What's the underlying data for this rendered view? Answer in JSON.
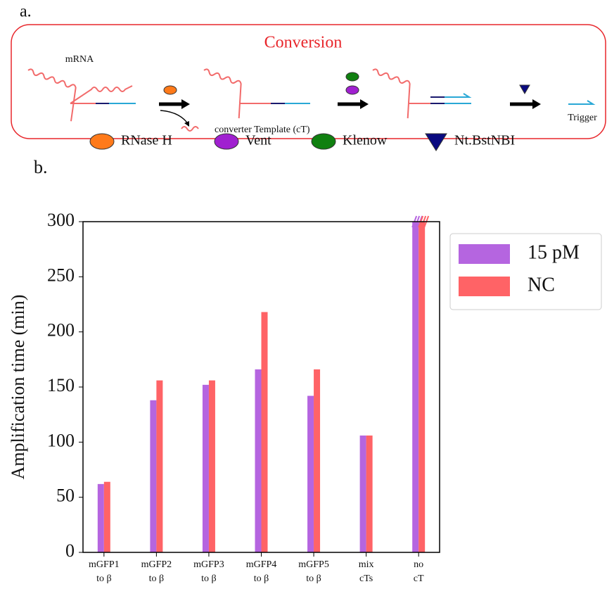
{
  "panel_a": {
    "label": "a.",
    "title": "Conversion",
    "mrna": "mRNA",
    "template": "converter Template (cT)",
    "trigger": "Trigger",
    "legend": [
      "RNase H",
      "Vent",
      "Klenow",
      "Nt.BstNBI"
    ]
  },
  "chart_data": {
    "type": "bar",
    "panel_label": "b.",
    "ylabel": "Amplification time (min)",
    "categories": [
      [
        "mGFP1",
        "to β"
      ],
      [
        "mGFP2",
        "to β"
      ],
      [
        "mGFP3",
        "to β"
      ],
      [
        "mGFP4",
        "to β"
      ],
      [
        "mGFP5",
        "to β"
      ],
      [
        "mix",
        "cTs"
      ],
      [
        "no",
        "cT"
      ]
    ],
    "series": [
      {
        "name": "15 pM",
        "color": "#b565e0",
        "values": [
          62,
          138,
          152,
          166,
          142,
          106,
          300
        ]
      },
      {
        "name": "NC",
        "color": "#ff6366",
        "values": [
          64,
          156,
          156,
          218,
          166,
          106,
          300
        ]
      }
    ],
    "ylim": [
      0,
      300
    ],
    "yticks": [
      0,
      50,
      100,
      150,
      200,
      250,
      300
    ],
    "legend": "outside-right"
  }
}
